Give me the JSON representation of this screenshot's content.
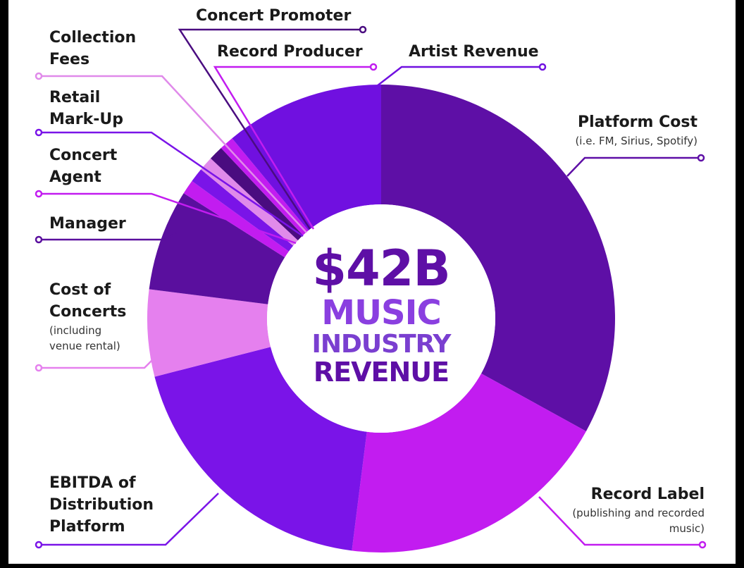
{
  "chart_data": {
    "type": "donut",
    "center_text": [
      "$42B",
      "MUSIC",
      "INDUSTRY",
      "REVENUE"
    ],
    "categories": [
      "Platform Cost",
      "Record Label",
      "EBITDA of Distribution Platform",
      "Cost of Concerts",
      "Manager",
      "Concert Agent",
      "Retail Mark-Up",
      "Collection Fees",
      "Concert Promoter",
      "Record Producer",
      "Artist Revenue"
    ],
    "notes": [
      "(i.e. FM, Sirius, Spotify)",
      "(publishing and recorded music)",
      null,
      "(including venue rental)",
      null,
      null,
      null,
      null,
      null,
      null,
      null
    ],
    "values": [
      33,
      19,
      19,
      6,
      7,
      1,
      1,
      1,
      1,
      1,
      11
    ],
    "colors": [
      "#5e0fa6",
      "#c21cf0",
      "#7a14e8",
      "#e580ee",
      "#5a0f9e",
      "#c21cf0",
      "#7a14e8",
      "#e08aea",
      "#4a0c80",
      "#c21cf0",
      "#7010e0"
    ]
  }
}
